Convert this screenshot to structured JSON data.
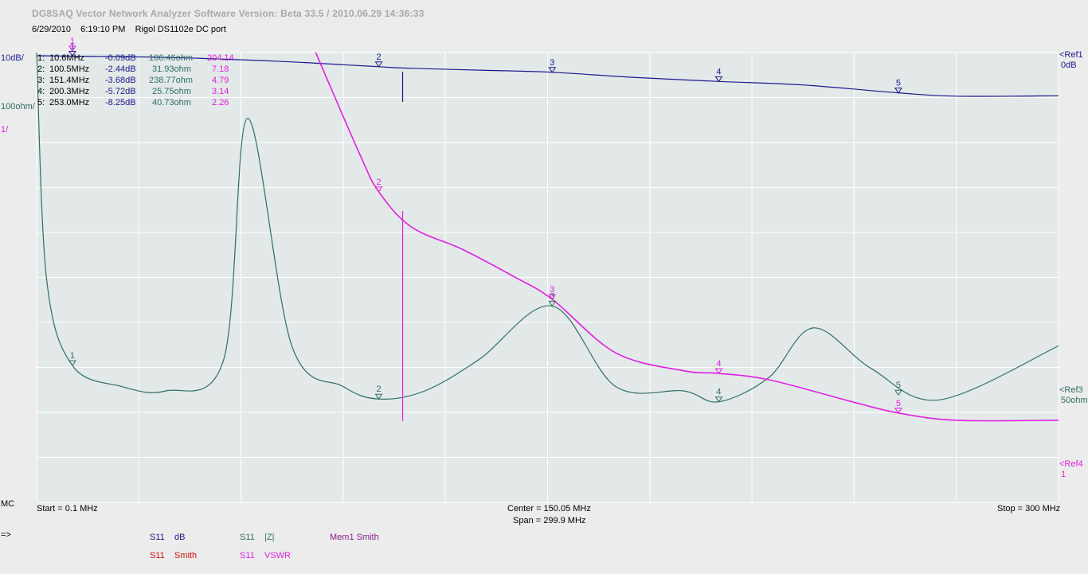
{
  "header": {
    "title": "DG8SAQ Vector Network Analyzer Software    Version:   Beta 33.5 / 2010.06.29 14:36:33",
    "date": "6/29/2010",
    "time": "6:19:10 PM",
    "device": "Rigol DS1102e DC port"
  },
  "left_labels": {
    "scale_db": "10dB/",
    "scale_ohm": "100ohm/",
    "scale_vswr": "1/",
    "mc": "MC",
    "prompt": "=>"
  },
  "right_labels": {
    "ref1": "<Ref1",
    "ref1_val": "0dB",
    "ref3": "<Ref3",
    "ref3_val": "50ohm",
    "ref4": "<Ref4",
    "ref4_val": "1"
  },
  "marker_table": [
    {
      "id": "1:",
      "freq": "10.6MHz",
      "db": "-0.09dB",
      "ohm": "106.46ohm",
      "vswr": "204.14"
    },
    {
      "id": "2:",
      "freq": "100.5MHz",
      "db": "-2.44dB",
      "ohm": "31.93ohm",
      "vswr": "7.18"
    },
    {
      "id": "3:",
      "freq": "151.4MHz",
      "db": "-3.68dB",
      "ohm": "238.77ohm",
      "vswr": "4.79"
    },
    {
      "id": "4:",
      "freq": "200.3MHz",
      "db": "-5.72dB",
      "ohm": "25.75ohm",
      "vswr": "3.14"
    },
    {
      "id": "5:",
      "freq": "253.0MHz",
      "db": "-8.25dB",
      "ohm": "40.73ohm",
      "vswr": "2.26"
    }
  ],
  "axis": {
    "start": "Start = 0.1 MHz",
    "center": "Center = 150.05 MHz",
    "span": "Span = 299.9 MHz",
    "stop": "Stop = 300 MHz"
  },
  "legend": {
    "s11_db": {
      "param": "S11",
      "fmt": "dB"
    },
    "s11_smith": {
      "param": "S11",
      "fmt": "Smith"
    },
    "s11_z": {
      "param": "S11",
      "fmt": "|Z|"
    },
    "s11_vswr": {
      "param": "S11",
      "fmt": "VSWR"
    },
    "mem1": "Mem1  Smith"
  },
  "colors": {
    "db": "#1a1a8c",
    "z": "#2f6e62",
    "vswr": "#e020e0",
    "smith": "#d01010",
    "mem": "#8a1a8a",
    "grid": "#ffffff",
    "plot_bg": "#e3e9e9"
  },
  "chart_data": {
    "type": "line",
    "x_range_mhz": [
      0.1,
      300
    ],
    "grid": true,
    "series": [
      {
        "name": "S11 dB",
        "unit": "dB",
        "ref": "0dB",
        "scale_per_div": 10,
        "x": [
          0.1,
          10.6,
          40,
          70,
          90,
          100.5,
          110,
          130,
          151.4,
          175,
          200.3,
          225,
          253,
          270,
          300
        ],
        "y": [
          0,
          -0.09,
          -0.4,
          -1.2,
          -2.0,
          -2.44,
          -2.8,
          -3.2,
          -3.68,
          -4.8,
          -5.72,
          -6.5,
          -8.25,
          -9.0,
          -8.9
        ]
      },
      {
        "name": "S11 |Z|",
        "unit": "ohm",
        "ref": "50ohm",
        "scale_per_div": 100,
        "x": [
          0.1,
          3,
          10.6,
          25,
          38,
          55,
          62,
          75,
          90,
          100.5,
          114,
          130,
          151.4,
          170,
          190,
          200.3,
          215,
          228,
          245,
          265,
          300
        ],
        "y": [
          950,
          300,
          106.46,
          60,
          50,
          120,
          656,
          150,
          60,
          31.93,
          50,
          120,
          238.77,
          60,
          50,
          25.75,
          80,
          190,
          100,
          30,
          150
        ]
      },
      {
        "name": "S11 VSWR",
        "unit": "",
        "ref": "1",
        "scale_per_div": 1,
        "x": [
          82,
          95,
          100.5,
          110,
          125,
          140,
          151.4,
          170,
          190,
          200.3,
          215,
          240,
          253,
          270,
          300
        ],
        "y": [
          10.3,
          8.0,
          7.18,
          6.4,
          5.9,
          5.3,
          4.79,
          3.6,
          3.2,
          3.14,
          3.0,
          2.5,
          2.26,
          2.1,
          2.1
        ]
      }
    ],
    "markers": [
      {
        "id": "1",
        "x": 10.6,
        "db": -0.09,
        "z": 106.46,
        "vswr": 204.14
      },
      {
        "id": "2",
        "x": 100.5,
        "db": -2.44,
        "z": 31.93,
        "vswr": 7.18
      },
      {
        "id": "3",
        "x": 151.4,
        "db": -3.68,
        "z": 238.77,
        "vswr": 4.79
      },
      {
        "id": "4",
        "x": 200.3,
        "db": -5.72,
        "z": 25.75,
        "vswr": 3.14
      },
      {
        "id": "5",
        "x": 253.0,
        "db": -8.25,
        "z": 40.73,
        "vswr": 2.26
      }
    ]
  }
}
